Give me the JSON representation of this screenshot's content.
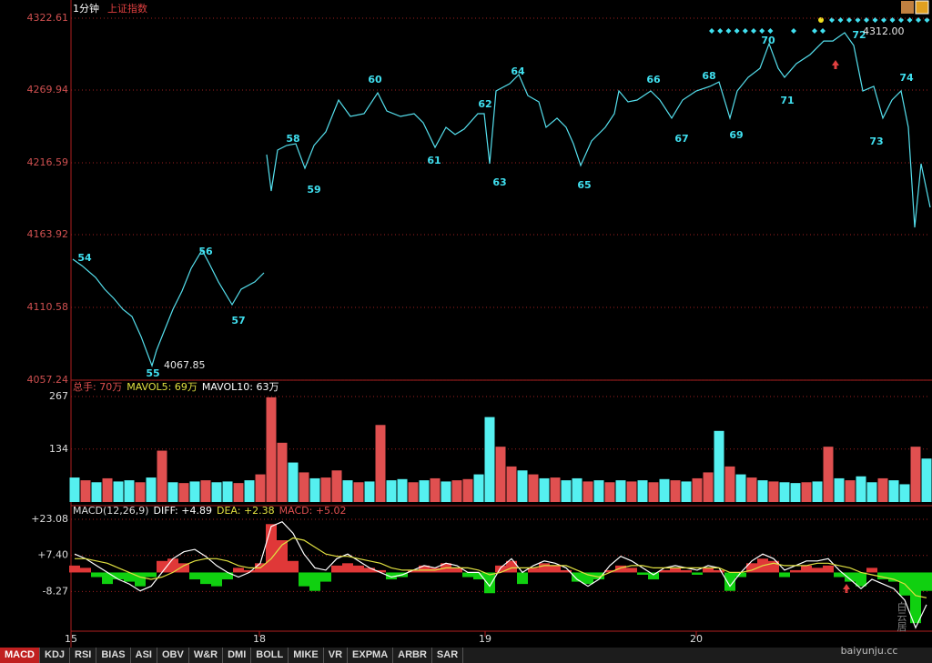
{
  "chart_data": [
    {
      "type": "line",
      "subtitle": "1分钟",
      "title": "上证指数",
      "color": "#55e0ee",
      "grid": true,
      "xlim": [
        0,
        944
      ],
      "ylim": [
        4057.24,
        4322.61
      ],
      "yticks": [
        4322.61,
        4269.94,
        4216.59,
        4163.92,
        4110.58,
        4057.24
      ],
      "annotations": [
        "54",
        "55",
        "56",
        "57",
        "58",
        "59",
        "60",
        "61",
        "62",
        "63",
        "64",
        "65",
        "66",
        "67",
        "68",
        "69",
        "70",
        "71",
        "72",
        "73",
        "74",
        "4067.85",
        "4312.00"
      ],
      "x": [
        2,
        12,
        27,
        37,
        47,
        57,
        67,
        77,
        89,
        94,
        102,
        112,
        122,
        132,
        144,
        152,
        162,
        177,
        187,
        202,
        212,
        null,
        215,
        220,
        227,
        237,
        247,
        257,
        267,
        280,
        294,
        307,
        322,
        337,
        347,
        362,
        377,
        387,
        400,
        412,
        422,
        432,
        447,
        454,
        460,
        467,
        482,
        492,
        502,
        514,
        522,
        534,
        544,
        552,
        560,
        572,
        587,
        597,
        602,
        612,
        622,
        637,
        647,
        660,
        672,
        687,
        702,
        712,
        724,
        732,
        744,
        757,
        767,
        777,
        784,
        797,
        812,
        827,
        837,
        850,
        860,
        870,
        882,
        892,
        902,
        912,
        920,
        927,
        934,
        944
      ],
      "values": [
        4145.9,
        4141.2,
        4132.6,
        4123.9,
        4117.2,
        4109.2,
        4103.9,
        4089.2,
        4067.85,
        4079.2,
        4092.6,
        4109.2,
        4122.6,
        4139.2,
        4152.6,
        4142.6,
        4129.3,
        4112.6,
        4123.9,
        4129.3,
        4135.9,
        null,
        4222.6,
        4195.9,
        4225.9,
        4229.3,
        4230.6,
        4212.6,
        4229.3,
        4239.3,
        4262.6,
        4250.6,
        4252.6,
        4267.9,
        4254.6,
        4250.6,
        4252.6,
        4245.9,
        4227.9,
        4242.6,
        4237.3,
        4241.3,
        4252.6,
        4252.6,
        4215.9,
        4269.3,
        4274.6,
        4281.3,
        4265.9,
        4261.3,
        4242.6,
        4249.3,
        4242.6,
        4230.6,
        4214.6,
        4232.6,
        4242.6,
        4252.6,
        4269.3,
        4261.3,
        4262.6,
        4269.3,
        4262.6,
        4249.3,
        4262.6,
        4269.3,
        4272.6,
        4275.9,
        4249.3,
        4269.3,
        4279.3,
        4285.9,
        4303.9,
        4285.9,
        4279.3,
        4289.3,
        4295.9,
        4305.9,
        4305.9,
        4312.0,
        4302.6,
        4269.3,
        4272.6,
        4249.3,
        4262.6,
        4269.3,
        4242.6,
        4169.2,
        4215.9,
        4183.9
      ]
    },
    {
      "type": "bar",
      "labels": [
        "总手: 70万",
        "MAVOL5: 69万",
        "MAVOL10: 63万"
      ],
      "label_colors": [
        "#e05050",
        "#e0e040",
        "#ffffff"
      ],
      "xlim": [
        0,
        944
      ],
      "ylim": [
        0,
        267
      ],
      "yticks": [
        134,
        267
      ],
      "grid": true,
      "x": [
        4,
        16,
        28,
        40,
        52,
        64,
        76,
        88,
        100,
        112,
        124,
        136,
        148,
        160,
        172,
        184,
        196,
        208,
        220,
        232,
        244,
        256,
        268,
        280,
        292,
        304,
        316,
        328,
        340,
        352,
        364,
        376,
        388,
        400,
        412,
        424,
        436,
        448,
        460,
        472,
        484,
        496,
        508,
        520,
        532,
        544,
        556,
        568,
        580,
        592,
        604,
        616,
        628,
        640,
        652,
        664,
        676,
        688,
        700,
        712,
        724,
        736,
        748,
        760,
        772,
        784,
        796,
        808,
        820,
        832,
        844,
        856,
        868,
        880,
        892,
        904,
        916,
        928,
        940
      ],
      "values": [
        62,
        55,
        50,
        60,
        52,
        55,
        50,
        62,
        130,
        50,
        48,
        52,
        55,
        50,
        52,
        48,
        55,
        70,
        265,
        150,
        100,
        75,
        60,
        62,
        80,
        55,
        50,
        52,
        195,
        55,
        58,
        50,
        55,
        60,
        52,
        55,
        58,
        70,
        215,
        140,
        90,
        80,
        70,
        60,
        62,
        55,
        60,
        52,
        55,
        50,
        55,
        52,
        55,
        50,
        58,
        55,
        52,
        60,
        75,
        180,
        90,
        70,
        62,
        55,
        52,
        50,
        48,
        50,
        52,
        140,
        60,
        55,
        65,
        50,
        60,
        55,
        45,
        140,
        110
      ],
      "bar_colors": [
        "#55f0f0",
        "#e05050",
        "#55f0f0",
        "#e05050",
        "#55f0f0",
        "#55f0f0",
        "#e05050",
        "#55f0f0",
        "#e05050",
        "#55f0f0",
        "#e05050",
        "#55f0f0",
        "#e05050",
        "#55f0f0",
        "#55f0f0",
        "#e05050",
        "#55f0f0",
        "#e05050",
        "#e05050",
        "#e05050",
        "#55f0f0",
        "#e05050",
        "#55f0f0",
        "#e05050",
        "#e05050",
        "#55f0f0",
        "#e05050",
        "#55f0f0",
        "#e05050",
        "#55f0f0",
        "#55f0f0",
        "#e05050",
        "#55f0f0",
        "#e05050",
        "#55f0f0",
        "#e05050",
        "#e05050",
        "#55f0f0",
        "#55f0f0",
        "#e05050",
        "#e05050",
        "#55f0f0",
        "#e05050",
        "#55f0f0",
        "#e05050",
        "#55f0f0",
        "#55f0f0",
        "#e05050",
        "#55f0f0",
        "#e05050",
        "#55f0f0",
        "#e05050",
        "#55f0f0",
        "#e05050",
        "#55f0f0",
        "#e05050",
        "#55f0f0",
        "#e05050",
        "#e05050",
        "#55f0f0",
        "#e05050",
        "#55f0f0",
        "#e05050",
        "#55f0f0",
        "#e05050",
        "#55f0f0",
        "#55f0f0",
        "#e05050",
        "#55f0f0",
        "#e05050",
        "#55f0f0",
        "#e05050",
        "#55f0f0",
        "#55f0f0",
        "#e05050",
        "#55f0f0",
        "#55f0f0",
        "#e05050",
        "#55f0f0"
      ]
    },
    {
      "type": "macd",
      "labels": [
        "MACD(12,26,9)",
        "DIFF: +4.89",
        "DEA: +2.38",
        "MACD: +5.02"
      ],
      "label_colors": [
        "#dddddd",
        "#ffffff",
        "#e0e040",
        "#e05050"
      ],
      "up_color": "#e03838",
      "down_color": "#10d010",
      "grid": true,
      "xlim": [
        0,
        944
      ],
      "ylim": [
        -24.7,
        23.08
      ],
      "yticks": [
        {
          "value": 23.08,
          "label": "+23.08"
        },
        {
          "value": 7.4,
          "label": "+7.40"
        },
        {
          "value": -8.27,
          "label": "-8.27"
        }
      ],
      "xticks": [
        {
          "value": 0,
          "label": "15"
        },
        {
          "value": 207,
          "label": "18"
        },
        {
          "value": 455,
          "label": "19"
        },
        {
          "value": 687,
          "label": "20"
        }
      ],
      "x": [
        4,
        16,
        28,
        40,
        52,
        64,
        76,
        88,
        100,
        112,
        124,
        136,
        148,
        160,
        172,
        184,
        196,
        208,
        220,
        232,
        244,
        256,
        268,
        280,
        292,
        304,
        316,
        328,
        340,
        352,
        364,
        376,
        388,
        400,
        412,
        424,
        436,
        448,
        460,
        472,
        484,
        496,
        508,
        520,
        532,
        544,
        556,
        568,
        580,
        592,
        604,
        616,
        628,
        640,
        652,
        664,
        676,
        688,
        700,
        712,
        724,
        736,
        748,
        760,
        772,
        784,
        796,
        808,
        820,
        832,
        844,
        856,
        868,
        880,
        892,
        904,
        916,
        928,
        940
      ],
      "values": [
        3,
        2,
        -2,
        -5,
        -3,
        -4,
        -6,
        -2,
        5,
        6,
        4,
        -3,
        -5,
        -6,
        -3,
        2,
        1,
        4,
        21,
        14,
        5,
        -6,
        -8,
        -4,
        3,
        4,
        3,
        2,
        1,
        -3,
        -2,
        1,
        3,
        2,
        4,
        2,
        -2,
        -3,
        -9,
        3,
        5,
        -5,
        2,
        4,
        3,
        1,
        -4,
        -5,
        -3,
        1,
        3,
        2,
        -1,
        -3,
        1,
        2,
        1,
        -1,
        2,
        1,
        -8,
        -2,
        4,
        6,
        5,
        -2,
        1,
        3,
        2,
        3,
        -2,
        -4,
        -6,
        2,
        -3,
        -4,
        -10,
        -22,
        -8
      ],
      "series": [
        {
          "color": "#ffffff",
          "values": [
            8,
            6,
            3,
            0,
            -3,
            -5,
            -8,
            -6,
            0,
            6,
            9,
            10,
            7,
            3,
            0,
            -2,
            0,
            4,
            20,
            22,
            17,
            8,
            2,
            1,
            6,
            8,
            5,
            2,
            0,
            -2,
            -1,
            1,
            3,
            2,
            4,
            3,
            0,
            0,
            -6,
            2,
            6,
            0,
            3,
            5,
            4,
            2,
            -3,
            -6,
            -3,
            3,
            7,
            5,
            2,
            -1,
            2,
            3,
            2,
            1,
            3,
            2,
            -6,
            0,
            5,
            8,
            6,
            1,
            3,
            5,
            5,
            6,
            1,
            -3,
            -7,
            -3,
            -5,
            -7,
            -12,
            -24,
            -14
          ]
        },
        {
          "color": "#e0e040",
          "values": [
            6,
            6,
            5,
            4,
            2,
            0,
            -2,
            -3,
            -2,
            0,
            3,
            5,
            6,
            6,
            5,
            3,
            2,
            2,
            6,
            12,
            15,
            14,
            11,
            8,
            7,
            7,
            6,
            5,
            4,
            2,
            1,
            1,
            1,
            1,
            2,
            2,
            2,
            1,
            -1,
            0,
            2,
            2,
            2,
            3,
            3,
            3,
            1,
            -1,
            -2,
            0,
            2,
            3,
            3,
            2,
            2,
            2,
            2,
            2,
            2,
            2,
            0,
            0,
            1,
            3,
            4,
            3,
            3,
            3,
            4,
            4,
            3,
            2,
            0,
            -1,
            -2,
            -3,
            -5,
            -10,
            -11
          ]
        }
      ]
    }
  ],
  "tabs": [
    "MACD",
    "KDJ",
    "RSI",
    "BIAS",
    "ASI",
    "OBV",
    "W&R",
    "DMI",
    "BOLL",
    "MIKE",
    "VR",
    "EXPMA",
    "ARBR",
    "SAR"
  ],
  "watermark": {
    "name": "白云居",
    "site": "baiyunju.cc"
  }
}
